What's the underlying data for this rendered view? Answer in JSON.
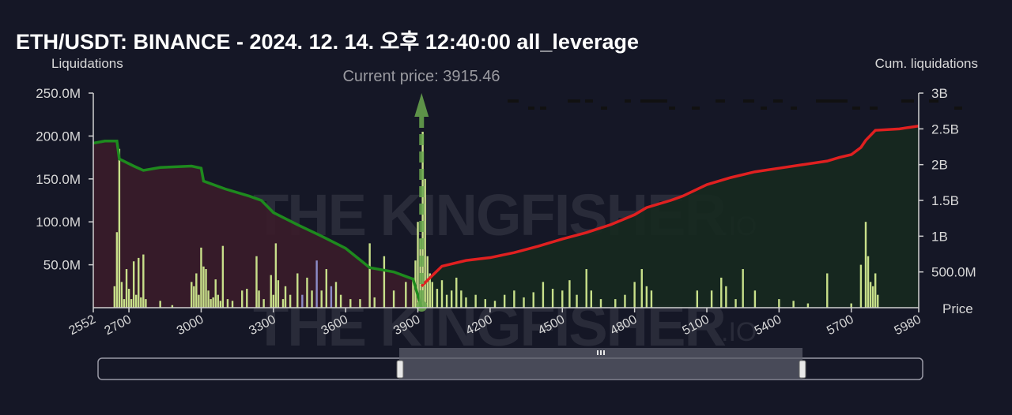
{
  "header": {
    "title": "ETH/USDT: BINANCE - 2024. 12. 14. 오후 12:40:00 all_leverage"
  },
  "current_price_label": "Current price: 3915.46",
  "watermark": {
    "main": "THE KINGFISHER",
    "suffix": ".IO"
  },
  "colors": {
    "background": "#151726",
    "bars": "#c8e08a",
    "bars_left_alt": "#8c8cc8",
    "cum_short": "#1e8a1e",
    "cum_long": "#e02020",
    "fill_short": "#3a1c2a",
    "fill_long": "#16291f",
    "current_price": "#6aa84f"
  },
  "chart_data": {
    "type": "bar",
    "title": "ETH/USDT: BINANCE - 2024. 12. 14. 오후 12:40:00 all_leverage",
    "xlabel": "Price",
    "ylabel": "Liquidations",
    "y2label": "Cum. liquidations",
    "xlim": [
      2552,
      5980
    ],
    "ylim": [
      0,
      250000000
    ],
    "y2lim": [
      0,
      3000000000
    ],
    "x_ticks": [
      "2552",
      "2700",
      "3000",
      "3300",
      "3600",
      "3900",
      "4200",
      "4500",
      "4800",
      "5100",
      "5400",
      "5700",
      "5980"
    ],
    "x_tick_values": [
      2552,
      2700,
      3000,
      3300,
      3600,
      3900,
      4200,
      4500,
      4800,
      5100,
      5400,
      5700,
      5980
    ],
    "y_ticks": [
      "50.0M",
      "100.0M",
      "150.0M",
      "200.0M",
      "250.0M"
    ],
    "y_tick_values": [
      50000000,
      100000000,
      150000000,
      200000000,
      250000000
    ],
    "y2_ticks": [
      "500.0M",
      "1B",
      "1.5B",
      "2B",
      "2.5B",
      "3B"
    ],
    "y2_tick_values": [
      500000000,
      1000000000,
      1500000000,
      2000000000,
      2500000000,
      3000000000
    ],
    "current_price": 3915.46,
    "grid": false,
    "bars": [
      {
        "x": 2650,
        "y": 88000000
      },
      {
        "x": 2660,
        "y": 185000000
      },
      {
        "x": 2640,
        "y": 25000000
      },
      {
        "x": 2670,
        "y": 30000000
      },
      {
        "x": 2680,
        "y": 10000000
      },
      {
        "x": 2690,
        "y": 45000000
      },
      {
        "x": 2700,
        "y": 22000000
      },
      {
        "x": 2710,
        "y": 10000000
      },
      {
        "x": 2720,
        "y": 54000000
      },
      {
        "x": 2730,
        "y": 15000000
      },
      {
        "x": 2740,
        "y": 58000000
      },
      {
        "x": 2750,
        "y": 12000000
      },
      {
        "x": 2760,
        "y": 62000000
      },
      {
        "x": 2770,
        "y": 10000000
      },
      {
        "x": 2830,
        "y": 8000000
      },
      {
        "x": 2880,
        "y": 3000000
      },
      {
        "x": 2960,
        "y": 30000000
      },
      {
        "x": 2970,
        "y": 25000000
      },
      {
        "x": 2980,
        "y": 40000000
      },
      {
        "x": 2990,
        "y": 15000000
      },
      {
        "x": 3000,
        "y": 70000000
      },
      {
        "x": 3010,
        "y": 48000000
      },
      {
        "x": 3020,
        "y": 45000000
      },
      {
        "x": 3030,
        "y": 20000000
      },
      {
        "x": 3040,
        "y": 10000000
      },
      {
        "x": 3050,
        "y": 12000000
      },
      {
        "x": 3060,
        "y": 33000000
      },
      {
        "x": 3070,
        "y": 15000000
      },
      {
        "x": 3080,
        "y": 8000000
      },
      {
        "x": 3090,
        "y": 72000000
      },
      {
        "x": 3110,
        "y": 10000000
      },
      {
        "x": 3130,
        "y": 8000000
      },
      {
        "x": 3170,
        "y": 20000000
      },
      {
        "x": 3190,
        "y": 22000000
      },
      {
        "x": 3230,
        "y": 60000000
      },
      {
        "x": 3240,
        "y": 20000000
      },
      {
        "x": 3260,
        "y": 10000000
      },
      {
        "x": 3290,
        "y": 38000000
      },
      {
        "x": 3300,
        "y": 15000000
      },
      {
        "x": 3310,
        "y": 75000000
      },
      {
        "x": 3320,
        "y": 32000000
      },
      {
        "x": 3340,
        "y": 10000000
      },
      {
        "x": 3350,
        "y": 25000000
      },
      {
        "x": 3370,
        "y": 15000000
      },
      {
        "x": 3400,
        "y": 40000000
      },
      {
        "x": 3420,
        "y": 15000000
      },
      {
        "x": 3440,
        "y": 35000000
      },
      {
        "x": 3460,
        "y": 20000000
      },
      {
        "x": 3480,
        "y": 55000000
      },
      {
        "x": 3500,
        "y": 20000000
      },
      {
        "x": 3520,
        "y": 45000000
      },
      {
        "x": 3540,
        "y": 25000000
      },
      {
        "x": 3560,
        "y": 30000000
      },
      {
        "x": 3580,
        "y": 15000000
      },
      {
        "x": 3620,
        "y": 10000000
      },
      {
        "x": 3660,
        "y": 10000000
      },
      {
        "x": 3700,
        "y": 75000000
      },
      {
        "x": 3720,
        "y": 12000000
      },
      {
        "x": 3760,
        "y": 60000000
      },
      {
        "x": 3800,
        "y": 20000000
      },
      {
        "x": 3850,
        "y": 30000000
      },
      {
        "x": 3880,
        "y": 35000000
      },
      {
        "x": 3890,
        "y": 55000000
      },
      {
        "x": 3900,
        "y": 100000000
      },
      {
        "x": 3910,
        "y": 80000000
      },
      {
        "x": 3920,
        "y": 205000000
      },
      {
        "x": 3930,
        "y": 150000000
      },
      {
        "x": 3940,
        "y": 60000000
      },
      {
        "x": 3950,
        "y": 40000000
      },
      {
        "x": 3960,
        "y": 30000000
      },
      {
        "x": 3980,
        "y": 22000000
      },
      {
        "x": 4000,
        "y": 32000000
      },
      {
        "x": 4020,
        "y": 15000000
      },
      {
        "x": 4040,
        "y": 20000000
      },
      {
        "x": 4060,
        "y": 35000000
      },
      {
        "x": 4080,
        "y": 20000000
      },
      {
        "x": 4100,
        "y": 12000000
      },
      {
        "x": 4140,
        "y": 15000000
      },
      {
        "x": 4180,
        "y": 10000000
      },
      {
        "x": 4220,
        "y": 8000000
      },
      {
        "x": 4260,
        "y": 15000000
      },
      {
        "x": 4300,
        "y": 20000000
      },
      {
        "x": 4340,
        "y": 12000000
      },
      {
        "x": 4380,
        "y": 18000000
      },
      {
        "x": 4420,
        "y": 30000000
      },
      {
        "x": 4460,
        "y": 22000000
      },
      {
        "x": 4500,
        "y": 20000000
      },
      {
        "x": 4530,
        "y": 32000000
      },
      {
        "x": 4560,
        "y": 15000000
      },
      {
        "x": 4600,
        "y": 45000000
      },
      {
        "x": 4620,
        "y": 20000000
      },
      {
        "x": 4660,
        "y": 10000000
      },
      {
        "x": 4720,
        "y": 10000000
      },
      {
        "x": 4760,
        "y": 15000000
      },
      {
        "x": 4800,
        "y": 30000000
      },
      {
        "x": 4830,
        "y": 45000000
      },
      {
        "x": 4850,
        "y": 25000000
      },
      {
        "x": 4870,
        "y": 20000000
      },
      {
        "x": 5060,
        "y": 20000000
      },
      {
        "x": 5120,
        "y": 20000000
      },
      {
        "x": 5160,
        "y": 35000000
      },
      {
        "x": 5180,
        "y": 25000000
      },
      {
        "x": 5220,
        "y": 10000000
      },
      {
        "x": 5250,
        "y": 45000000
      },
      {
        "x": 5300,
        "y": 20000000
      },
      {
        "x": 5400,
        "y": 10000000
      },
      {
        "x": 5460,
        "y": 8000000
      },
      {
        "x": 5520,
        "y": 5000000
      },
      {
        "x": 5600,
        "y": 40000000
      },
      {
        "x": 5700,
        "y": 5000000
      },
      {
        "x": 5740,
        "y": 50000000
      },
      {
        "x": 5760,
        "y": 100000000
      },
      {
        "x": 5770,
        "y": 60000000
      },
      {
        "x": 5780,
        "y": 30000000
      },
      {
        "x": 5790,
        "y": 25000000
      },
      {
        "x": 5800,
        "y": 40000000
      },
      {
        "x": 5810,
        "y": 15000000
      }
    ],
    "cum_short": [
      {
        "x": 2552,
        "y": 2300000000
      },
      {
        "x": 2600,
        "y": 2330000000
      },
      {
        "x": 2650,
        "y": 2330000000
      },
      {
        "x": 2660,
        "y": 2080000000
      },
      {
        "x": 2720,
        "y": 1980000000
      },
      {
        "x": 2760,
        "y": 1920000000
      },
      {
        "x": 2830,
        "y": 1960000000
      },
      {
        "x": 2960,
        "y": 1980000000
      },
      {
        "x": 3000,
        "y": 1950000000
      },
      {
        "x": 3010,
        "y": 1770000000
      },
      {
        "x": 3100,
        "y": 1660000000
      },
      {
        "x": 3200,
        "y": 1560000000
      },
      {
        "x": 3250,
        "y": 1500000000
      },
      {
        "x": 3300,
        "y": 1330000000
      },
      {
        "x": 3400,
        "y": 1160000000
      },
      {
        "x": 3500,
        "y": 1000000000
      },
      {
        "x": 3600,
        "y": 830000000
      },
      {
        "x": 3700,
        "y": 560000000
      },
      {
        "x": 3800,
        "y": 500000000
      },
      {
        "x": 3880,
        "y": 400000000
      },
      {
        "x": 3915,
        "y": 0
      }
    ],
    "cum_long": [
      {
        "x": 3915,
        "y": 300000000
      },
      {
        "x": 3960,
        "y": 450000000
      },
      {
        "x": 4000,
        "y": 580000000
      },
      {
        "x": 4100,
        "y": 660000000
      },
      {
        "x": 4200,
        "y": 700000000
      },
      {
        "x": 4300,
        "y": 770000000
      },
      {
        "x": 4400,
        "y": 860000000
      },
      {
        "x": 4500,
        "y": 960000000
      },
      {
        "x": 4600,
        "y": 1050000000
      },
      {
        "x": 4700,
        "y": 1160000000
      },
      {
        "x": 4800,
        "y": 1300000000
      },
      {
        "x": 4850,
        "y": 1400000000
      },
      {
        "x": 4950,
        "y": 1500000000
      },
      {
        "x": 5000,
        "y": 1560000000
      },
      {
        "x": 5100,
        "y": 1720000000
      },
      {
        "x": 5200,
        "y": 1820000000
      },
      {
        "x": 5300,
        "y": 1900000000
      },
      {
        "x": 5400,
        "y": 1950000000
      },
      {
        "x": 5500,
        "y": 2000000000
      },
      {
        "x": 5600,
        "y": 2050000000
      },
      {
        "x": 5650,
        "y": 2100000000
      },
      {
        "x": 5700,
        "y": 2140000000
      },
      {
        "x": 5740,
        "y": 2240000000
      },
      {
        "x": 5760,
        "y": 2340000000
      },
      {
        "x": 5800,
        "y": 2480000000
      },
      {
        "x": 5900,
        "y": 2500000000
      },
      {
        "x": 5980,
        "y": 2540000000
      }
    ]
  }
}
